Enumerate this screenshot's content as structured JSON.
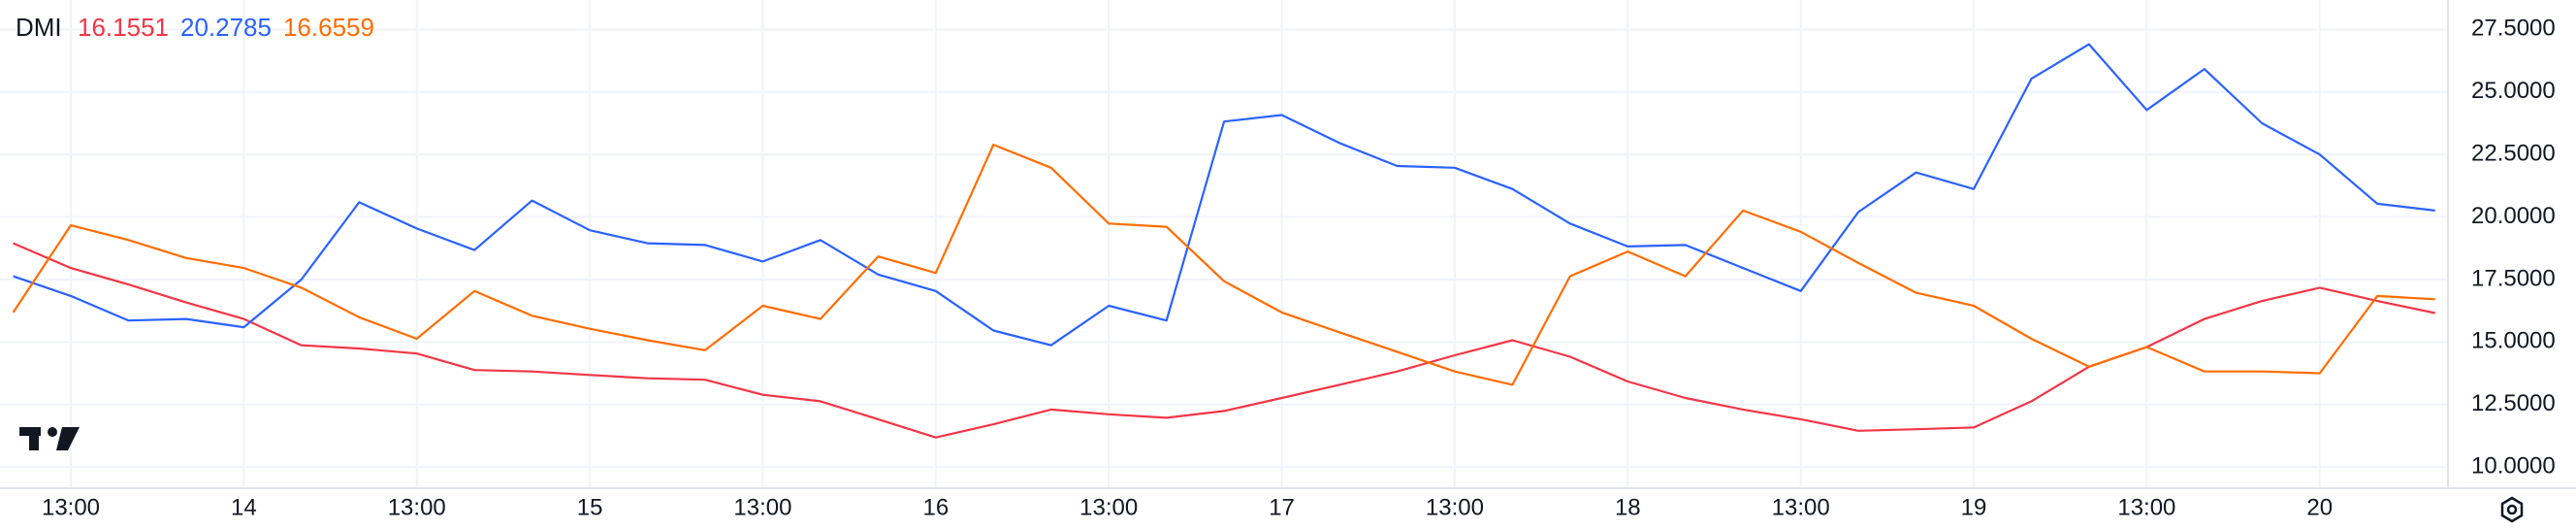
{
  "chart_data": {
    "type": "line",
    "title": "DMI",
    "categories": [
      null,
      "13:00",
      null,
      null,
      "14",
      null,
      null,
      "13:00",
      null,
      null,
      "15",
      null,
      null,
      "13:00",
      null,
      null,
      "16",
      null,
      null,
      "13:00",
      null,
      null,
      "17",
      null,
      null,
      "13:00",
      null,
      null,
      "18",
      null,
      null,
      "13:00",
      null,
      null,
      "19",
      null,
      null,
      "13:00",
      null,
      null,
      "20",
      null,
      null
    ],
    "series": [
      {
        "color": "#f23645",
        "last_label": "16.1551",
        "values": [
          18.95,
          17.96,
          17.3,
          16.58,
          15.92,
          14.87,
          14.74,
          14.54,
          13.88,
          13.82,
          13.68,
          13.55,
          13.49,
          12.89,
          12.63,
          11.91,
          11.18,
          11.71,
          12.3,
          12.11,
          11.97,
          12.24,
          12.76,
          13.29,
          13.82,
          14.47,
          15.07,
          14.41,
          13.42,
          12.76,
          12.3,
          11.91,
          11.45,
          11.51,
          11.58,
          12.63,
          14.01,
          14.8,
          15.92,
          16.64,
          17.17,
          16.64,
          16.16
        ]
      },
      {
        "color": "#2962ff",
        "last_label": "20.2785",
        "values": [
          17.63,
          16.84,
          15.86,
          15.92,
          15.59,
          17.5,
          20.59,
          19.54,
          18.68,
          20.66,
          19.47,
          18.95,
          18.88,
          18.22,
          19.08,
          17.7,
          17.04,
          15.46,
          14.87,
          16.45,
          15.86,
          23.82,
          24.08,
          22.96,
          22.04,
          21.97,
          21.12,
          19.74,
          18.82,
          18.88,
          17.96,
          17.04,
          20.2,
          21.78,
          21.12,
          25.53,
          26.91,
          24.28,
          25.92,
          23.75,
          22.5,
          20.53,
          20.26
        ]
      },
      {
        "color": "#ff6d00",
        "last_label": "16.6559",
        "values": [
          16.18,
          19.67,
          19.08,
          18.36,
          17.96,
          17.17,
          15.99,
          15.13,
          17.04,
          16.05,
          15.53,
          15.07,
          14.67,
          16.45,
          15.92,
          18.42,
          17.76,
          22.89,
          21.97,
          19.74,
          19.61,
          17.43,
          16.18,
          15.39,
          14.61,
          13.82,
          13.29,
          17.63,
          18.62,
          17.63,
          20.26,
          19.41,
          18.16,
          16.97,
          16.45,
          15.13,
          14.01,
          14.8,
          13.82,
          13.82,
          13.75,
          16.84,
          16.71
        ]
      }
    ],
    "ylim": [
      9.15,
      28.68
    ],
    "yticks": [
      {
        "value": 10,
        "label": "10.0000"
      },
      {
        "value": 12.5,
        "label": "12.5000"
      },
      {
        "value": 15,
        "label": "15.0000"
      },
      {
        "value": 17.5,
        "label": "17.5000"
      },
      {
        "value": 20,
        "label": "20.0000"
      },
      {
        "value": 22.5,
        "label": "22.5000"
      },
      {
        "value": 25,
        "label": "25.0000"
      },
      {
        "value": 27.5,
        "label": "27.5000"
      }
    ],
    "grid": true
  }
}
